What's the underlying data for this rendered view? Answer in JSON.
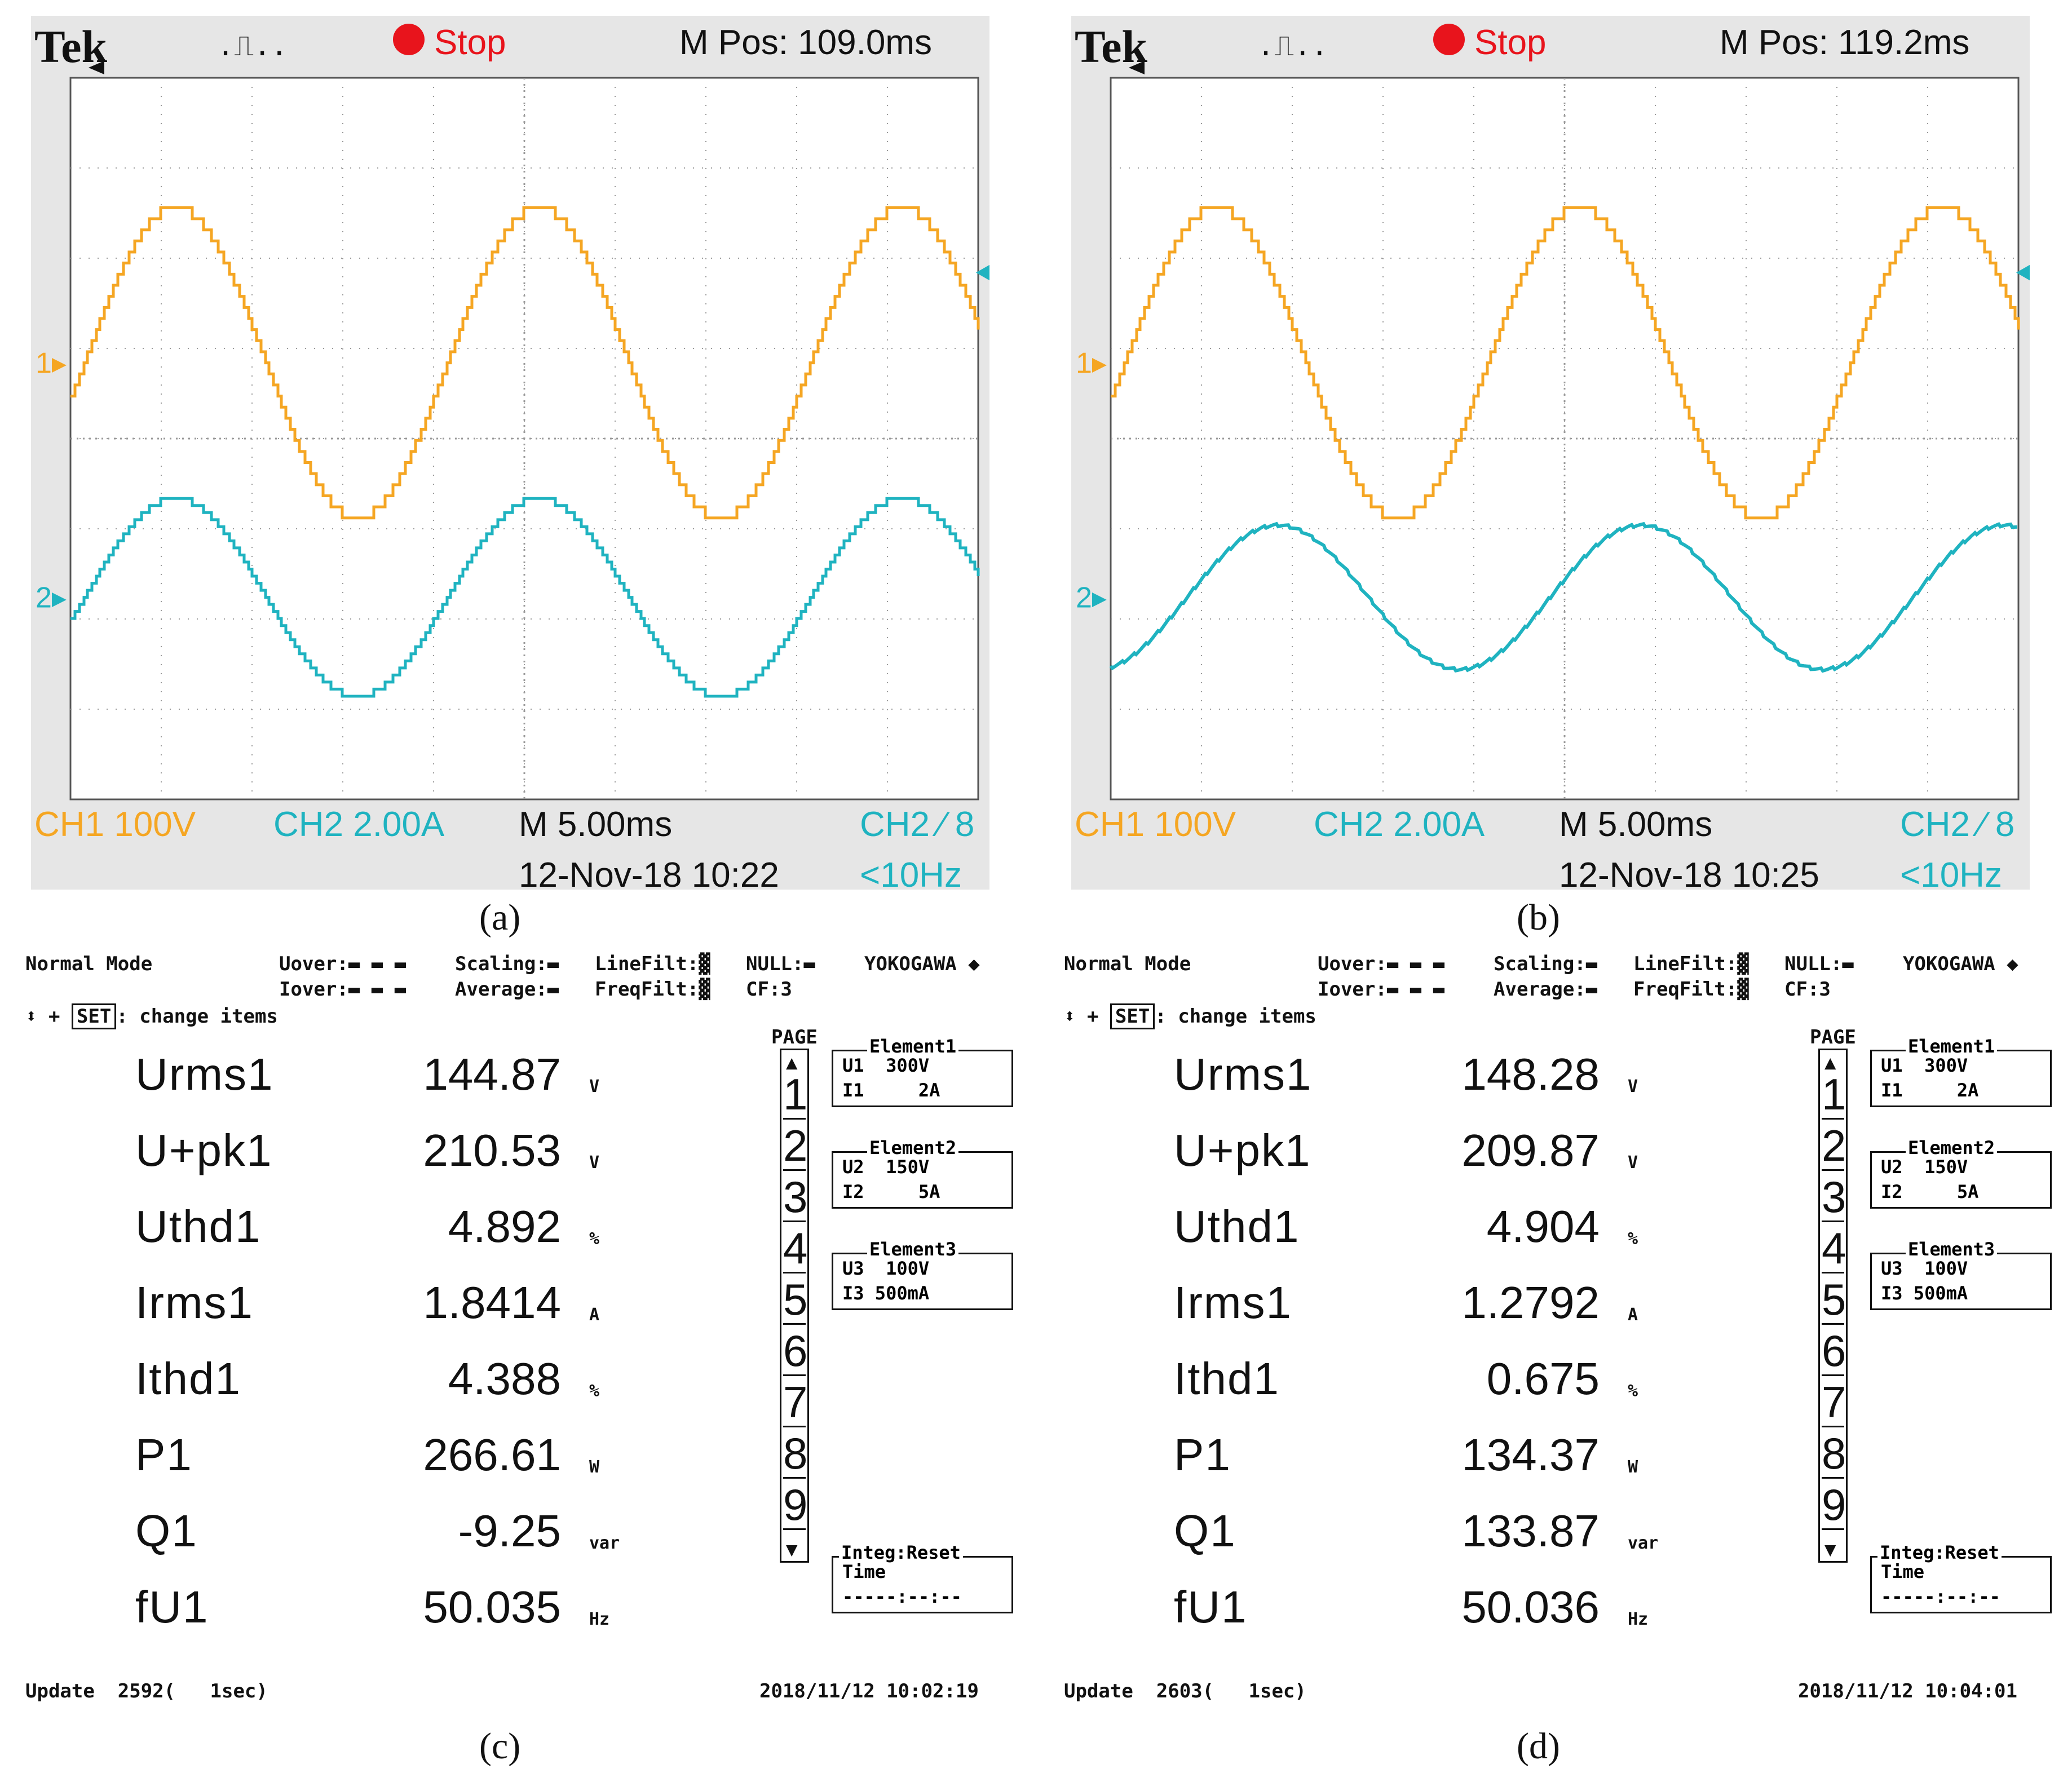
{
  "scopes": [
    {
      "brand": "Tek",
      "trigger_symbol": ".⎍..",
      "status": "Stop",
      "mpos": "M Pos: 109.0ms",
      "ch1": "CH1  100V",
      "ch2": "CH2  2.00A",
      "timebase": "M 5.00ms",
      "trig_ch": "CH2 ∕ 8",
      "date": "12-Nov-18 10:22",
      "freq": "<10Hz",
      "marker1": "1",
      "marker2": "2",
      "caption": "(a)"
    },
    {
      "brand": "Tek",
      "trigger_symbol": ".⎍..",
      "status": "Stop",
      "mpos": "M Pos: 119.2ms",
      "ch1": "CH1  100V",
      "ch2": "CH2  2.00A",
      "timebase": "M 5.00ms",
      "trig_ch": "CH2 ∕ 8",
      "date": "12-Nov-18 10:25",
      "freq": "<10Hz",
      "marker1": "1",
      "marker2": "2",
      "caption": "(b)"
    }
  ],
  "colors": {
    "ch1": "#f5a623",
    "ch2": "#1fb3c0",
    "stop_dot": "#e8141c",
    "screen_bg": "#e6e6e6",
    "grid": "#9a9a9a"
  },
  "meters": [
    {
      "mode": "Normal Mode",
      "uover": "Uover:▬ ▬ ▬",
      "iover": "Iover:▬ ▬ ▬",
      "scaling": "Scaling:▬",
      "average": "Average:▬",
      "linefilt": "LineFilt:▓",
      "freqfilt": "FreqFilt:▓",
      "null": "NULL:▬",
      "cf": "CF:3",
      "brand": "YOKOGAWA ◆",
      "set_key": "SET",
      "change_items": ": change items",
      "page_label": "PAGE",
      "readings": [
        {
          "label": "Urms1",
          "value": "144.87",
          "unit": "V"
        },
        {
          "label": "U+pk1",
          "value": "210.53",
          "unit": "V"
        },
        {
          "label": "Uthd1",
          "value": "4.892",
          "unit": "%"
        },
        {
          "label": "Irms1",
          "value": "1.8414",
          "unit": "A"
        },
        {
          "label": "Ithd1",
          "value": "4.388",
          "unit": "%"
        },
        {
          "label": "P1",
          "value": "266.61",
          "unit": "W"
        },
        {
          "label": "Q1",
          "value": "-9.25",
          "unit": "var"
        },
        {
          "label": "fU1",
          "value": "50.035",
          "unit": "Hz"
        }
      ],
      "pages": [
        "1",
        "2",
        "3",
        "4",
        "5",
        "6",
        "7",
        "8",
        "9"
      ],
      "elements": [
        {
          "title": "Element1",
          "row1": "U1  300V",
          "row2": "I1     2A"
        },
        {
          "title": "Element2",
          "row1": "U2  150V",
          "row2": "I2     5A"
        },
        {
          "title": "Element3",
          "row1": "U3  100V",
          "row2": "I3 500mA"
        }
      ],
      "integ_title": "Integ:Reset",
      "integ_time": "Time",
      "integ_value": "-----:--:--",
      "update": "Update  2592(   1sec)",
      "timestamp": "2018/11/12 10:02:19",
      "caption": "(c)"
    },
    {
      "mode": "Normal Mode",
      "uover": "Uover:▬ ▬ ▬",
      "iover": "Iover:▬ ▬ ▬",
      "scaling": "Scaling:▬",
      "average": "Average:▬",
      "linefilt": "LineFilt:▓",
      "freqfilt": "FreqFilt:▓",
      "null": "NULL:▬",
      "cf": "CF:3",
      "brand": "YOKOGAWA ◆",
      "set_key": "SET",
      "change_items": ": change items",
      "page_label": "PAGE",
      "readings": [
        {
          "label": "Urms1",
          "value": "148.28",
          "unit": "V"
        },
        {
          "label": "U+pk1",
          "value": "209.87",
          "unit": "V"
        },
        {
          "label": "Uthd1",
          "value": "4.904",
          "unit": "%"
        },
        {
          "label": "Irms1",
          "value": "1.2792",
          "unit": "A"
        },
        {
          "label": "Ithd1",
          "value": "0.675",
          "unit": "%"
        },
        {
          "label": "P1",
          "value": "134.37",
          "unit": "W"
        },
        {
          "label": "Q1",
          "value": "133.87",
          "unit": "var"
        },
        {
          "label": "fU1",
          "value": "50.036",
          "unit": "Hz"
        }
      ],
      "pages": [
        "1",
        "2",
        "3",
        "4",
        "5",
        "6",
        "7",
        "8",
        "9"
      ],
      "elements": [
        {
          "title": "Element1",
          "row1": "U1  300V",
          "row2": "I1     2A"
        },
        {
          "title": "Element2",
          "row1": "U2  150V",
          "row2": "I2     5A"
        },
        {
          "title": "Element3",
          "row1": "U3  100V",
          "row2": "I3 500mA"
        }
      ],
      "integ_title": "Integ:Reset",
      "integ_time": "Time",
      "integ_value": "-----:--:--",
      "update": "Update  2603(   1sec)",
      "timestamp": "2018/11/12 10:04:01",
      "caption": "(d)"
    }
  ]
}
